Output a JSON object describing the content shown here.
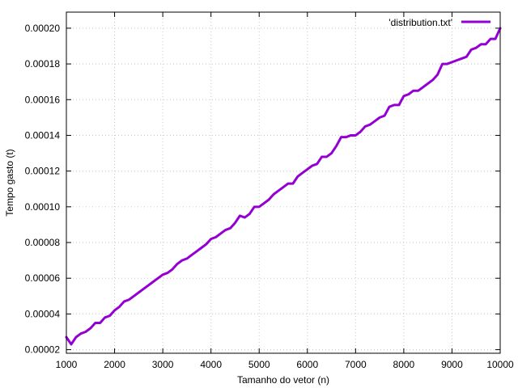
{
  "chart_data": {
    "type": "line",
    "xlabel": "Tamanho do vetor (n)",
    "ylabel": "Tempo gasto (t)",
    "xlim": [
      1000,
      10000
    ],
    "ylim": [
      1.8e-05,
      0.000209
    ],
    "xticks": [
      1000,
      2000,
      3000,
      4000,
      5000,
      6000,
      7000,
      8000,
      9000,
      10000
    ],
    "yticks": [
      2e-05,
      4e-05,
      6e-05,
      8e-05,
      0.0001,
      0.00012,
      0.00014,
      0.00016,
      0.00018,
      0.0002
    ],
    "xtick_labels": [
      "1000",
      "2000",
      "3000",
      "4000",
      "5000",
      "6000",
      "7000",
      "8000",
      "9000",
      "10000"
    ],
    "ytick_labels": [
      "0.00002",
      "0.00004",
      "0.00006",
      "0.00008",
      "0.00010",
      "0.00012",
      "0.00014",
      "0.00016",
      "0.00018",
      "0.00020"
    ],
    "grid": true,
    "legend_position": "top-right",
    "series": [
      {
        "name": "'distribution.txt'",
        "color": "#9400d3",
        "x": [
          1000,
          1100,
          1200,
          1300,
          1400,
          1500,
          1600,
          1700,
          1800,
          1900,
          2000,
          2100,
          2200,
          2300,
          2400,
          2500,
          2600,
          2700,
          2800,
          2900,
          3000,
          3100,
          3200,
          3300,
          3400,
          3500,
          3600,
          3700,
          3800,
          3900,
          4000,
          4100,
          4200,
          4300,
          4400,
          4500,
          4600,
          4700,
          4800,
          4900,
          5000,
          5100,
          5200,
          5300,
          5400,
          5500,
          5600,
          5700,
          5800,
          5900,
          6000,
          6100,
          6200,
          6300,
          6400,
          6500,
          6600,
          6700,
          6800,
          6900,
          7000,
          7100,
          7200,
          7300,
          7400,
          7500,
          7600,
          7700,
          7800,
          7900,
          8000,
          8100,
          8200,
          8300,
          8400,
          8500,
          8600,
          8700,
          8800,
          8900,
          9000,
          9100,
          9200,
          9300,
          9400,
          9500,
          9600,
          9700,
          9800,
          9900,
          10000
        ],
        "y": [
          2.7e-05,
          2.3e-05,
          2.7e-05,
          2.9e-05,
          3e-05,
          3.2e-05,
          3.5e-05,
          3.5e-05,
          3.8e-05,
          3.9e-05,
          4.2e-05,
          4.4e-05,
          4.7e-05,
          4.8e-05,
          5e-05,
          5.2e-05,
          5.4e-05,
          5.6e-05,
          5.8e-05,
          6e-05,
          6.2e-05,
          6.3e-05,
          6.5e-05,
          6.8e-05,
          7e-05,
          7.1e-05,
          7.3e-05,
          7.5e-05,
          7.7e-05,
          7.9e-05,
          8.2e-05,
          8.3e-05,
          8.5e-05,
          8.7e-05,
          8.8e-05,
          9.1e-05,
          9.5e-05,
          9.4e-05,
          9.6e-05,
          0.0001,
          0.0001,
          0.000102,
          0.000104,
          0.000107,
          0.000109,
          0.000111,
          0.000113,
          0.000113,
          0.000117,
          0.000119,
          0.000121,
          0.000123,
          0.000124,
          0.000128,
          0.000128,
          0.00013,
          0.000134,
          0.000139,
          0.000139,
          0.00014,
          0.00014,
          0.000142,
          0.000145,
          0.000146,
          0.000148,
          0.00015,
          0.000151,
          0.000156,
          0.000157,
          0.000157,
          0.000162,
          0.000163,
          0.000165,
          0.000165,
          0.000167,
          0.000169,
          0.000171,
          0.000174,
          0.00018,
          0.00018,
          0.000181,
          0.000182,
          0.000183,
          0.000184,
          0.000188,
          0.000189,
          0.000191,
          0.000191,
          0.000194,
          0.000194,
          0.0002
        ]
      }
    ]
  }
}
